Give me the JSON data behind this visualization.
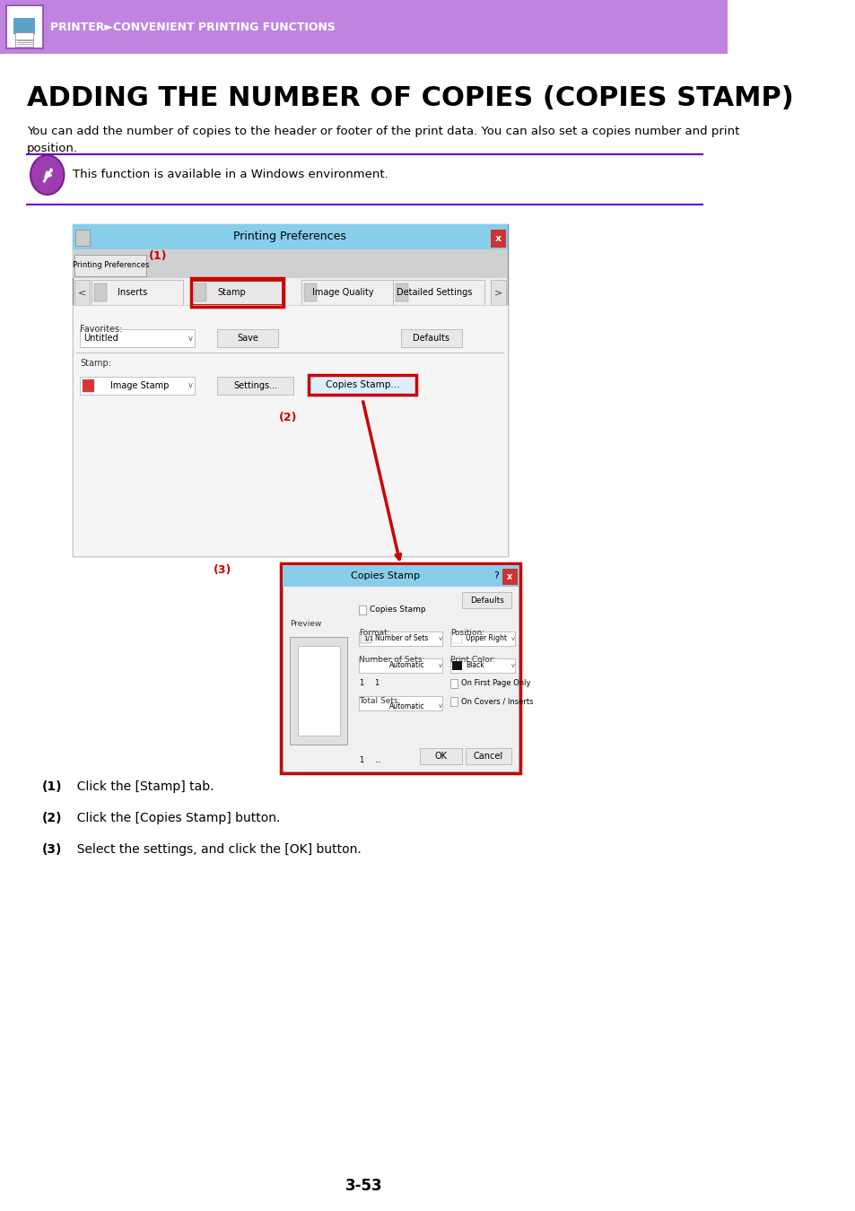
{
  "header_bg_color": "#c084e0",
  "header_text": "PRINTER►CONVENIENT PRINTING FUNCTIONS",
  "header_text_color": "#ffffff",
  "title": "ADDING THE NUMBER OF COPIES (COPIES STAMP)",
  "title_color": "#000000",
  "body_text": "You can add the number of copies to the header or footer of the print data. You can also set a copies number and print\nposition.",
  "note_text": "This function is available in a Windows environment.",
  "divider_color": "#6600cc",
  "step1": "(1)  Click the [Stamp] tab.",
  "step2": "(2)  Click the [Copies Stamp] button.",
  "step3": "(3)  Select the settings, and click the [OK] button.",
  "page_number": "3-53",
  "bg_color": "#ffffff",
  "annotation_color": "#cc0000",
  "dialog_bg": "#e8e8e8",
  "dialog_title_bg": "#87ceeb",
  "stamp_box_color": "#cc0000"
}
